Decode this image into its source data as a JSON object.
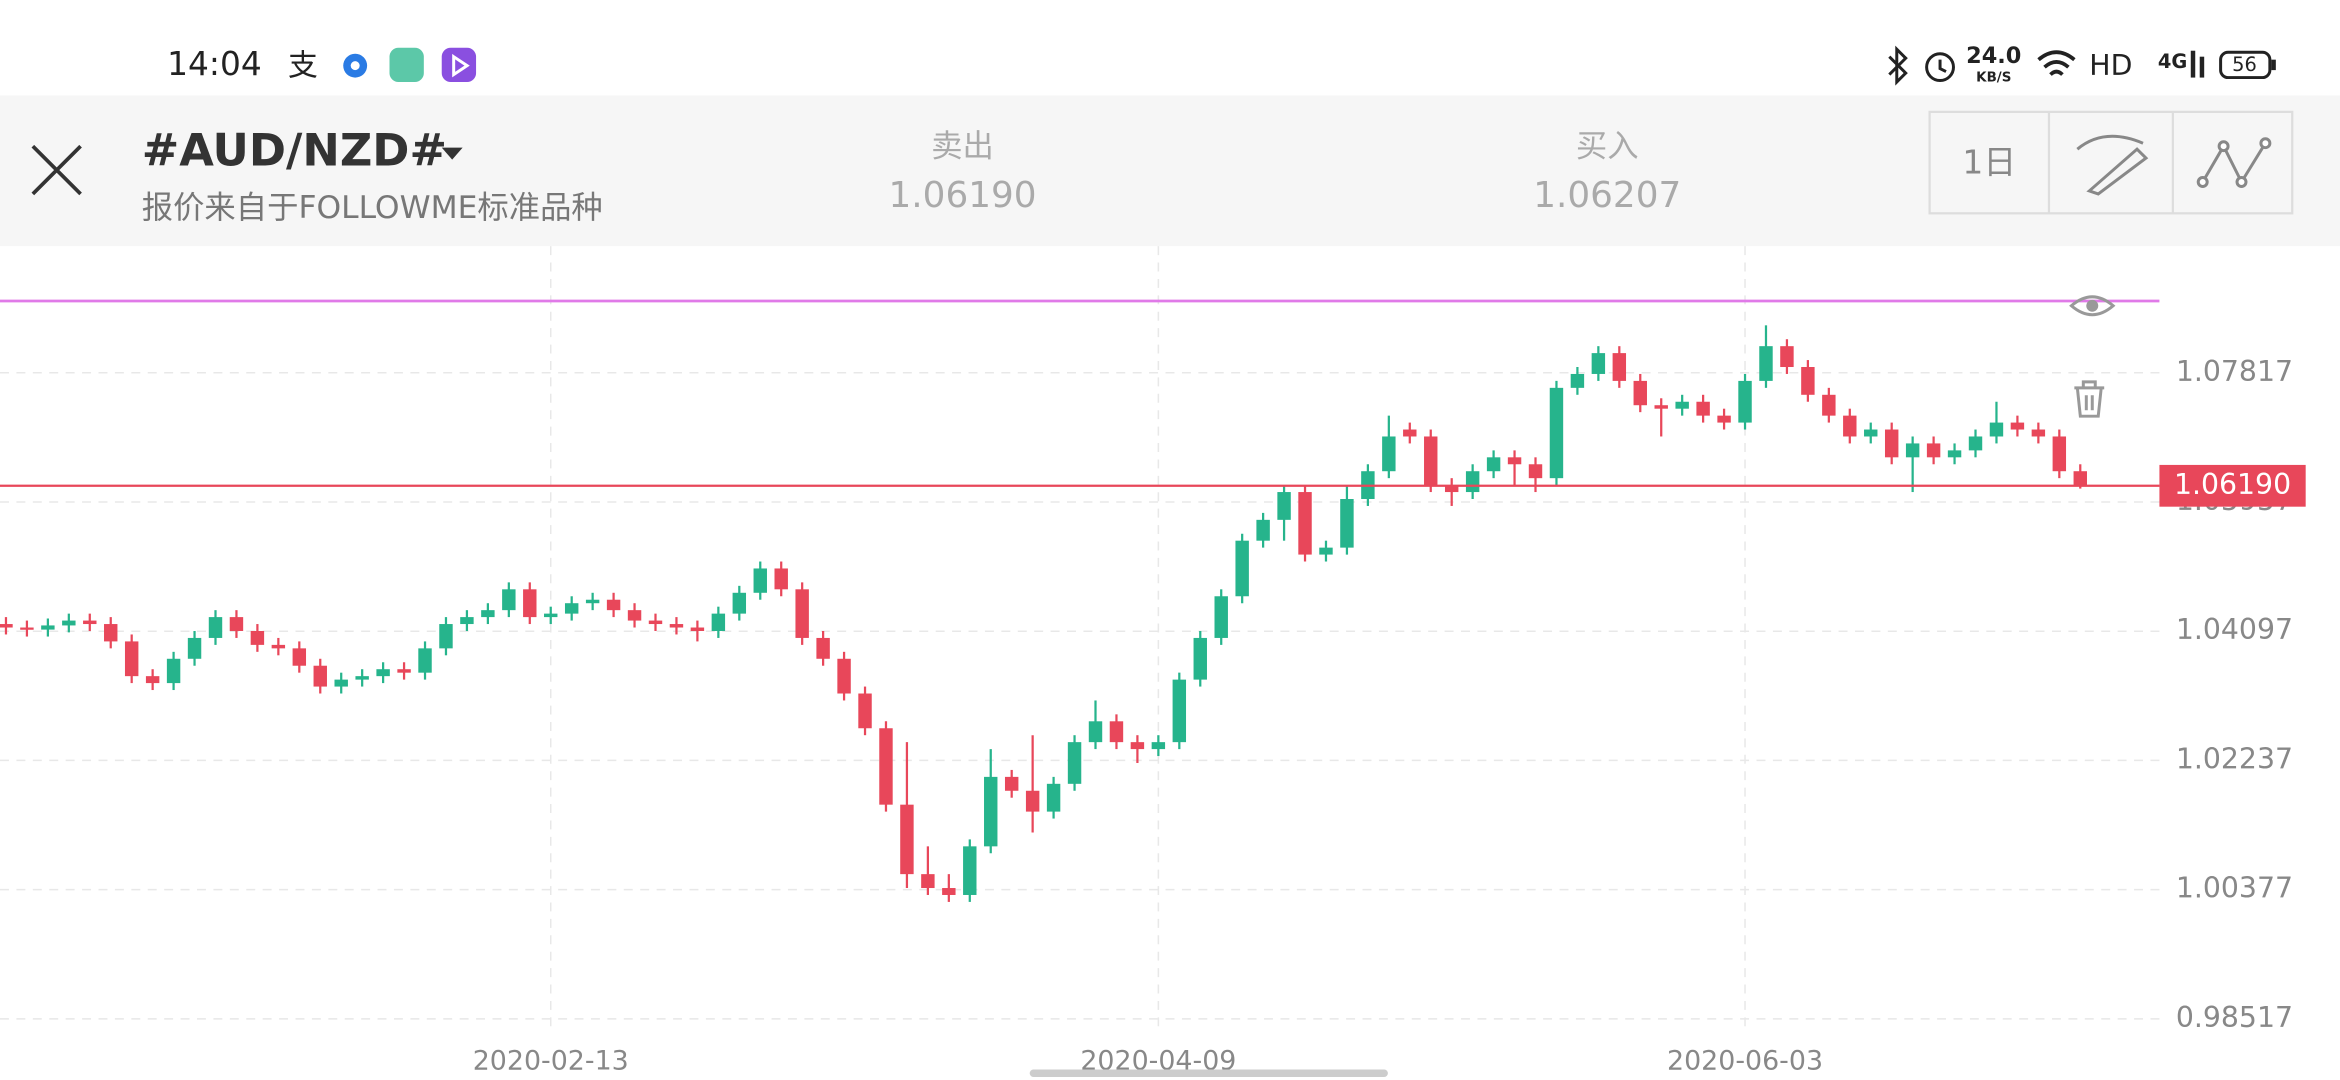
{
  "status_bar": {
    "time": "14:04",
    "speed": "24.0",
    "speed_unit": "KB/S",
    "hd": "HD",
    "network": "4G",
    "battery": "56"
  },
  "header": {
    "symbol": "#AUD/NZD#",
    "source": "报价来自于FOLLOWME标准品种",
    "sell_label": "卖出",
    "sell_price": "1.06190",
    "buy_label": "买入",
    "buy_price": "1.06207",
    "period": "1日"
  },
  "chart_data": {
    "type": "candlestick",
    "up_color": "#26b48c",
    "down_color": "#e8475a",
    "x": [
      null,
      null,
      null,
      null,
      null,
      null,
      null,
      null,
      null,
      null,
      null,
      null,
      null,
      null,
      null,
      null,
      null,
      null,
      null,
      null,
      null,
      null,
      null,
      null,
      null,
      null,
      "2020-02-13",
      null,
      null,
      null,
      null,
      null,
      null,
      null,
      null,
      null,
      null,
      null,
      null,
      null,
      null,
      null,
      null,
      null,
      null,
      null,
      null,
      null,
      null,
      null,
      null,
      null,
      null,
      null,
      null,
      "2020-04-09",
      null,
      null,
      null,
      null,
      null,
      null,
      null,
      null,
      null,
      null,
      null,
      null,
      null,
      null,
      null,
      null,
      null,
      null,
      null,
      null,
      null,
      null,
      null,
      null,
      null,
      null,
      null,
      "2020-06-03",
      null,
      null,
      null,
      null,
      null,
      null,
      null,
      null,
      null,
      null,
      null,
      null,
      null,
      null,
      null,
      null
    ],
    "open": [
      1.042,
      1.0415,
      1.0412,
      1.0418,
      1.0425,
      1.042,
      1.0395,
      1.0345,
      1.0335,
      1.037,
      1.04,
      1.043,
      1.041,
      1.039,
      1.0385,
      1.036,
      1.033,
      1.034,
      1.0345,
      1.0355,
      1.035,
      1.0385,
      1.042,
      1.043,
      1.044,
      1.047,
      1.043,
      1.0435,
      1.045,
      1.0455,
      1.044,
      1.0425,
      1.042,
      1.0415,
      1.041,
      1.0435,
      1.0465,
      1.05,
      1.047,
      1.04,
      1.037,
      1.032,
      1.027,
      1.016,
      1.006,
      1.004,
      1.003,
      1.01,
      1.02,
      1.018,
      1.015,
      1.019,
      1.025,
      1.028,
      1.025,
      1.024,
      1.025,
      1.034,
      1.04,
      1.046,
      1.054,
      1.057,
      1.061,
      1.052,
      1.053,
      1.06,
      1.064,
      1.07,
      1.069,
      1.062,
      1.061,
      1.064,
      1.066,
      1.065,
      1.063,
      1.076,
      1.078,
      1.081,
      1.077,
      1.0735,
      1.073,
      1.074,
      1.072,
      1.071,
      1.077,
      1.082,
      1.079,
      1.075,
      1.072,
      1.069,
      1.07,
      1.066,
      1.068,
      1.066,
      1.067,
      1.069,
      1.071,
      1.07,
      1.069,
      1.064
    ],
    "high": [
      1.043,
      1.0425,
      1.0428,
      1.0435,
      1.0435,
      1.043,
      1.0405,
      1.0355,
      1.038,
      1.041,
      1.044,
      1.044,
      1.042,
      1.04,
      1.0395,
      1.037,
      1.035,
      1.0355,
      1.0365,
      1.0365,
      1.0395,
      1.043,
      1.044,
      1.045,
      1.048,
      1.048,
      1.0445,
      1.046,
      1.0465,
      1.0465,
      1.045,
      1.0435,
      1.043,
      1.0425,
      1.0445,
      1.0475,
      1.051,
      1.051,
      1.048,
      1.041,
      1.038,
      1.033,
      1.028,
      1.025,
      1.01,
      1.006,
      1.011,
      1.024,
      1.021,
      1.026,
      1.02,
      1.026,
      1.031,
      1.029,
      1.026,
      1.026,
      1.035,
      1.041,
      1.047,
      1.055,
      1.058,
      1.062,
      1.062,
      1.054,
      1.062,
      1.065,
      1.072,
      1.071,
      1.07,
      1.063,
      1.065,
      1.067,
      1.067,
      1.066,
      1.077,
      1.079,
      1.082,
      1.082,
      1.078,
      1.0745,
      1.075,
      1.075,
      1.073,
      1.078,
      1.085,
      1.083,
      1.08,
      1.076,
      1.073,
      1.071,
      1.071,
      1.069,
      1.069,
      1.068,
      1.07,
      1.074,
      1.072,
      1.071,
      1.07,
      1.065
    ],
    "low": [
      1.0405,
      1.0402,
      1.0402,
      1.0408,
      1.041,
      1.0385,
      1.0335,
      1.0325,
      1.0325,
      1.036,
      1.039,
      1.04,
      1.038,
      1.0375,
      1.035,
      1.032,
      1.032,
      1.033,
      1.0335,
      1.034,
      1.034,
      1.0375,
      1.041,
      1.042,
      1.043,
      1.042,
      1.042,
      1.0425,
      1.044,
      1.043,
      1.0415,
      1.041,
      1.0405,
      1.0395,
      1.04,
      1.0425,
      1.0455,
      1.046,
      1.039,
      1.036,
      1.031,
      1.026,
      1.015,
      1.004,
      1.003,
      1.002,
      1.002,
      1.009,
      1.017,
      1.012,
      1.014,
      1.018,
      1.024,
      1.024,
      1.022,
      1.023,
      1.024,
      1.033,
      1.039,
      1.045,
      1.053,
      1.054,
      1.051,
      1.051,
      1.052,
      1.059,
      1.063,
      1.068,
      1.061,
      1.059,
      1.06,
      1.063,
      1.062,
      1.061,
      1.062,
      1.075,
      1.077,
      1.076,
      1.0725,
      1.069,
      1.072,
      1.071,
      1.07,
      1.07,
      1.076,
      1.078,
      1.074,
      1.071,
      1.068,
      1.068,
      1.065,
      1.061,
      1.065,
      1.065,
      1.066,
      1.068,
      1.069,
      1.068,
      1.063,
      1.0615
    ],
    "close": [
      1.0415,
      1.0412,
      1.0418,
      1.0425,
      1.042,
      1.0395,
      1.0345,
      1.0335,
      1.037,
      1.04,
      1.043,
      1.041,
      1.039,
      1.0385,
      1.036,
      1.033,
      1.034,
      1.0345,
      1.0355,
      1.035,
      1.0385,
      1.042,
      1.043,
      1.044,
      1.047,
      1.043,
      1.0435,
      1.045,
      1.0455,
      1.044,
      1.0425,
      1.042,
      1.0415,
      1.041,
      1.0435,
      1.0465,
      1.05,
      1.047,
      1.04,
      1.037,
      1.032,
      1.027,
      1.016,
      1.006,
      1.004,
      1.003,
      1.01,
      1.02,
      1.018,
      1.015,
      1.019,
      1.025,
      1.028,
      1.025,
      1.024,
      1.025,
      1.034,
      1.04,
      1.046,
      1.054,
      1.057,
      1.061,
      1.052,
      1.053,
      1.06,
      1.064,
      1.069,
      1.069,
      1.062,
      1.061,
      1.064,
      1.066,
      1.065,
      1.063,
      1.076,
      1.078,
      1.081,
      1.077,
      1.0735,
      1.073,
      1.074,
      1.072,
      1.071,
      1.077,
      1.082,
      1.079,
      1.075,
      1.072,
      1.069,
      1.07,
      1.066,
      1.068,
      1.066,
      1.067,
      1.069,
      1.071,
      1.07,
      1.069,
      1.064,
      1.0619
    ],
    "ylim": [
      0.98517,
      1.0964
    ],
    "yticks": [
      0.98517,
      1.00377,
      1.02237,
      1.04097,
      1.05957,
      1.07817
    ],
    "grid": true,
    "drawn_line": {
      "value": 1.0885,
      "color": "#e07ae8"
    },
    "price_line": {
      "value": 1.0619,
      "label": "1.06190",
      "color": "#e8475a"
    }
  }
}
